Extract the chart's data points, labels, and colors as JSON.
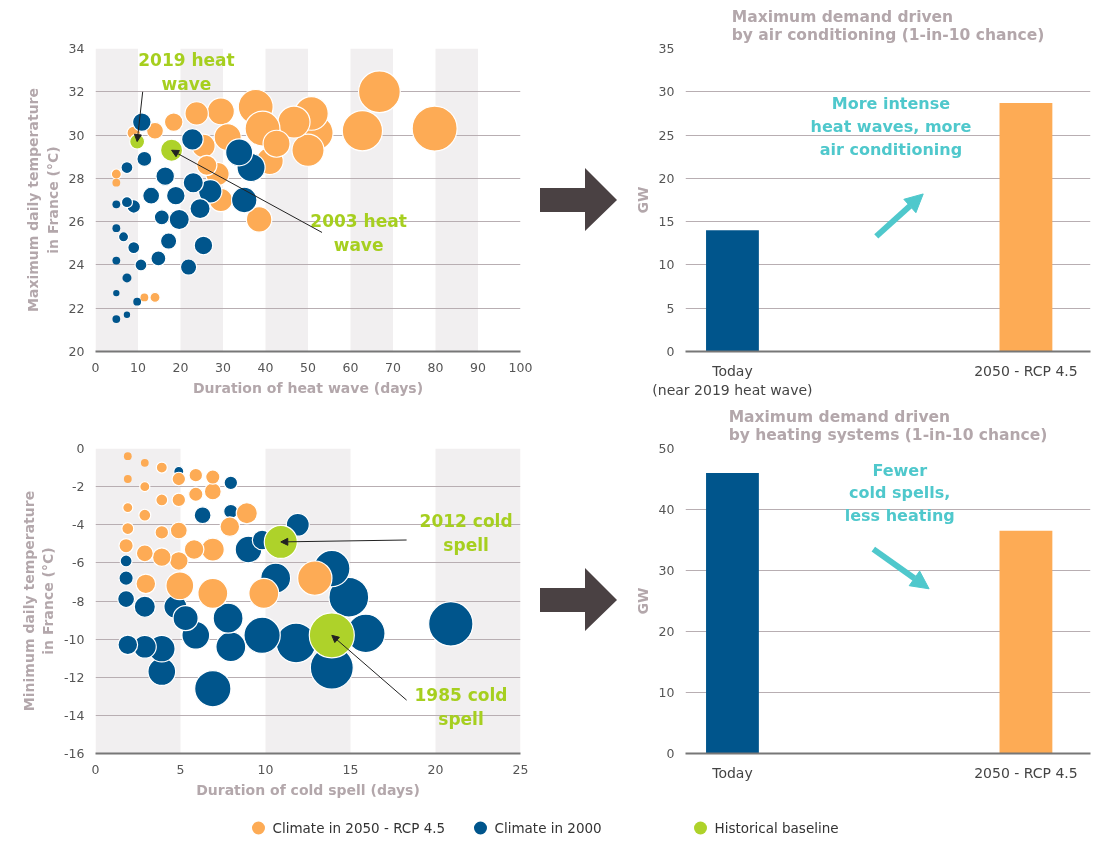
{
  "chart_data": [
    {
      "type": "bubble",
      "xlabel": "Duration of heat wave (days)",
      "ylabel": "Maximum daily temperature\nin France (°C)",
      "xlim": [
        0,
        100
      ],
      "xticks": [
        0,
        10,
        20,
        30,
        40,
        50,
        60,
        70,
        80,
        90,
        100
      ],
      "ylim": [
        20,
        34
      ],
      "yticks": [
        20,
        22,
        24,
        26,
        28,
        30,
        32,
        34
      ],
      "grid": "y",
      "legend": "bottom",
      "bands": [
        {
          "axis": "x",
          "from": 0,
          "to": 10,
          "color": "#f1eff0"
        },
        {
          "axis": "x",
          "from": 20,
          "to": 30,
          "color": "#f1eff0"
        },
        {
          "axis": "x",
          "from": 40,
          "to": 50,
          "color": "#f1eff0"
        },
        {
          "axis": "x",
          "from": 60,
          "to": 70,
          "color": "#f1eff0"
        },
        {
          "axis": "x",
          "from": 80,
          "to": 90,
          "color": "#f1eff0"
        }
      ],
      "annotations": [
        {
          "text": "2019 heat\nwave",
          "x": 9.8,
          "y": 29.7
        },
        {
          "text": "2003 heat\nwave",
          "x": 17.9,
          "y": 29.3
        }
      ],
      "series": [
        {
          "name": "Climate in 2050 - RCP 4.5",
          "color": "#fdab55",
          "x": [
            79.8,
            66.8,
            62.8,
            51.8,
            50,
            50.8,
            46.7,
            37.7,
            39.3,
            41,
            38.5,
            29.5,
            31.1,
            23.8,
            25.4,
            28.7,
            18.4,
            14,
            9,
            4.9,
            4.9,
            14,
            11.5,
            29.5,
            42.6,
            26.2
          ],
          "values": [
            30.3,
            32.0,
            30.2,
            30.1,
            29.3,
            31.0,
            30.6,
            31.3,
            30.3,
            28.8,
            26.1,
            31.1,
            29.9,
            31.0,
            29.5,
            28.2,
            30.6,
            30.2,
            30.1,
            28.2,
            27.8,
            22.5,
            22.5,
            27.0,
            29.6,
            28.6
          ],
          "sizes": [
            1,
            0.86,
            0.8,
            0.6,
            0.51,
            0.56,
            0.51,
            0.6,
            0.6,
            0.36,
            0.32,
            0.36,
            0.36,
            0.27,
            0.27,
            0.27,
            0.17,
            0.14,
            0.09,
            0.05,
            0.03,
            0.05,
            0.03,
            0.27,
            0.36,
            0.2
          ]
        },
        {
          "name": "Climate in 2000",
          "color": "#00558c",
          "x": [
            36.6,
            33.8,
            35,
            10.9,
            22.8,
            27,
            25.4,
            21.9,
            23,
            19.7,
            16.4,
            13.1,
            11.5,
            9,
            7.4,
            6.6,
            4.9,
            4.9,
            4.9,
            4.9,
            4.9,
            7.4,
            9.8,
            7.4,
            10.7,
            14.8,
            17.2,
            15.6,
            7.4,
            9,
            18.9,
            24.6
          ],
          "values": [
            28.5,
            29.2,
            27.0,
            30.6,
            29.8,
            27.4,
            24.9,
            23.9,
            27.8,
            26.1,
            28.1,
            27.2,
            28.9,
            26.7,
            28.5,
            25.3,
            26.8,
            25.7,
            24.2,
            22.7,
            21.5,
            21.7,
            22.3,
            23.4,
            24.0,
            24.3,
            25.1,
            26.2,
            26.9,
            24.8,
            27.2,
            26.6
          ],
          "sizes": [
            0.39,
            0.36,
            0.32,
            0.17,
            0.23,
            0.27,
            0.17,
            0.13,
            0.2,
            0.2,
            0.17,
            0.14,
            0.11,
            0.09,
            0.07,
            0.05,
            0.03,
            0.03,
            0.03,
            0.02,
            0.03,
            0.02,
            0.03,
            0.04,
            0.07,
            0.11,
            0.13,
            0.11,
            0.06,
            0.07,
            0.17,
            0.2
          ]
        },
        {
          "name": "Historical baseline",
          "color": "#aed22a",
          "x": [
            9.8,
            17.9
          ],
          "values": [
            29.7,
            29.3
          ],
          "sizes": [
            0.11,
            0.24
          ]
        }
      ]
    },
    {
      "type": "bar",
      "title": "Maximum demand driven\nby air conditioning (1-in-10 chance)",
      "ylabel": "GW",
      "categories": [
        "Today\n(near 2019 heat wave)",
        "2050 - RCP 4.5"
      ],
      "values": [
        14,
        28.7
      ],
      "colors": [
        "#00558c",
        "#fdab55"
      ],
      "ylim": [
        0,
        35
      ],
      "yticks": [
        0,
        5,
        10,
        15,
        20,
        25,
        30,
        35
      ],
      "grid": "y",
      "annotations": [
        "More intense\nheat waves, more\nair conditioning"
      ]
    },
    {
      "type": "bubble",
      "xlabel": "Duration of cold spell (days)",
      "ylabel": "Minimum daily temperature\nin France (°C)",
      "xlim": [
        0,
        25
      ],
      "xticks": [
        0,
        5,
        10,
        15,
        20,
        25
      ],
      "ylim": [
        -16,
        0
      ],
      "yticks": [
        -16,
        -14,
        -12,
        -10,
        -8,
        -6,
        -4,
        -2,
        0
      ],
      "grid": "y",
      "legend": "bottom",
      "bands": [
        {
          "axis": "x",
          "from": 0,
          "to": 5,
          "color": "#f1eff0"
        },
        {
          "axis": "x",
          "from": 10,
          "to": 15,
          "color": "#f1eff0"
        },
        {
          "axis": "x",
          "from": 20,
          "to": 25,
          "color": "#f1eff0"
        }
      ],
      "annotations": [
        {
          "text": "2012 cold\nspell",
          "x": 10.9,
          "y": -4.9
        },
        {
          "text": "1985 cold\nspell",
          "x": 13.9,
          "y": -9.8
        }
      ],
      "series": [
        {
          "name": "Climate in 2000",
          "color": "#00558c",
          "x": [
            20.9,
            13.9,
            15.9,
            14.9,
            13.9,
            11.8,
            9.8,
            7.96,
            6.9,
            11.9,
            10.6,
            9,
            7.8,
            5.9,
            3.9,
            3.9,
            2.9,
            1.9,
            2.9,
            1.8,
            1.8,
            1.8,
            4.7,
            5.3,
            7.96,
            4.9,
            7.96,
            6.3,
            9.8
          ],
          "values": [
            -9.2,
            -11.5,
            -9.7,
            -7.8,
            -6.3,
            -10.2,
            -9.8,
            -10.4,
            -12.6,
            -4.0,
            -6.8,
            -5.3,
            -8.9,
            -9.8,
            -11.7,
            -10.5,
            -10.4,
            -10.3,
            -8.3,
            -7.9,
            -6.8,
            -5.9,
            -8.3,
            -8.9,
            -1.8,
            -1.2,
            -3.3,
            -3.5,
            -4.8
          ],
          "sizes": [
            0.97,
            0.91,
            0.73,
            0.78,
            0.65,
            0.78,
            0.65,
            0.44,
            0.65,
            0.26,
            0.44,
            0.35,
            0.44,
            0.38,
            0.38,
            0.35,
            0.26,
            0.19,
            0.22,
            0.14,
            0.1,
            0.07,
            0.26,
            0.31,
            0.09,
            0.05,
            0.1,
            0.14,
            0.19
          ]
        },
        {
          "name": "Climate in 2050 - RCP 4.5",
          "color": "#fdab55",
          "x": [
            12.9,
            9.9,
            6.9,
            4.96,
            2.96,
            6.9,
            5.8,
            4.9,
            3.9,
            2.9,
            1.8,
            8.9,
            7.9,
            6.9,
            6.9,
            5.9,
            5.9,
            4.9,
            4.9,
            4.9,
            3.9,
            3.9,
            3.9,
            2.9,
            2.9,
            2.9,
            1.9,
            1.9,
            1.9,
            1.9
          ],
          "values": [
            -6.8,
            -7.6,
            -7.6,
            -7.2,
            -7.1,
            -5.3,
            -5.3,
            -5.9,
            -5.7,
            -5.5,
            -5.1,
            -3.4,
            -4.1,
            -2.25,
            -1.5,
            -2.4,
            -1.4,
            -1.6,
            -2.7,
            -4.3,
            -2.7,
            -1.0,
            -4.4,
            -0.75,
            -2.0,
            -3.5,
            -0.4,
            -1.6,
            -3.1,
            -4.2
          ],
          "sizes": [
            0.58,
            0.44,
            0.44,
            0.38,
            0.19,
            0.26,
            0.19,
            0.17,
            0.17,
            0.14,
            0.1,
            0.22,
            0.19,
            0.14,
            0.1,
            0.1,
            0.09,
            0.09,
            0.09,
            0.14,
            0.07,
            0.06,
            0.09,
            0.03,
            0.05,
            0.07,
            0.03,
            0.03,
            0.05,
            0.07
          ]
        },
        {
          "name": "Historical baseline",
          "color": "#aed22a",
          "x": [
            10.9,
            13.9
          ],
          "values": [
            -4.9,
            -9.8
          ],
          "sizes": [
            0.54,
            1
          ]
        }
      ]
    },
    {
      "type": "bar",
      "title": "Maximum demand driven\nby heating systems (1-in-10 chance)",
      "ylabel": "GW",
      "categories": [
        "Today",
        "2050 - RCP 4.5"
      ],
      "values": [
        46,
        36.5
      ],
      "colors": [
        "#00558c",
        "#fdab55"
      ],
      "ylim": [
        0,
        50
      ],
      "yticks": [
        0,
        10,
        20,
        30,
        40,
        50
      ],
      "grid": "y",
      "annotations": [
        "Fewer\ncold spells,\nless heating"
      ]
    }
  ]
}
